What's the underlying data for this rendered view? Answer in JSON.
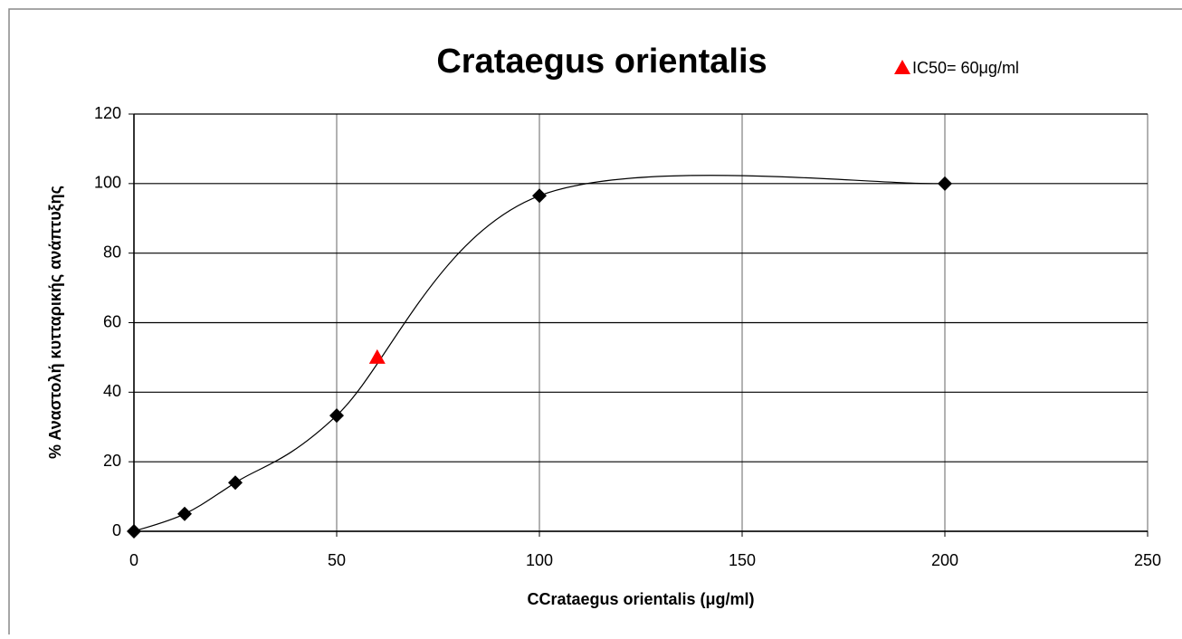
{
  "chart_data": {
    "type": "scatter",
    "title": "Crataegus orientalis",
    "xlabel": "CCrataegus orientalis (μg/ml)",
    "ylabel": "% Αναστολή κυτταρικής ανάπτυξης",
    "series": [
      {
        "color": "#000000",
        "marker": "diamond",
        "smooth": true,
        "x": [
          0,
          12.5,
          25,
          50,
          100,
          200
        ],
        "values": [
          0,
          5,
          14,
          33.3,
          96.5,
          100
        ]
      },
      {
        "name": "IC50= 60μg/ml",
        "color": "#ff0000",
        "marker": "triangle",
        "x": [
          60
        ],
        "values": [
          50
        ]
      }
    ],
    "xlim": [
      0,
      250
    ],
    "xticks": [
      0,
      50,
      100,
      150,
      200,
      250
    ],
    "ylim": [
      0,
      120
    ],
    "yticks": [
      0,
      20,
      40,
      60,
      80,
      100,
      120
    ],
    "grid": true,
    "legend": "top-right"
  }
}
